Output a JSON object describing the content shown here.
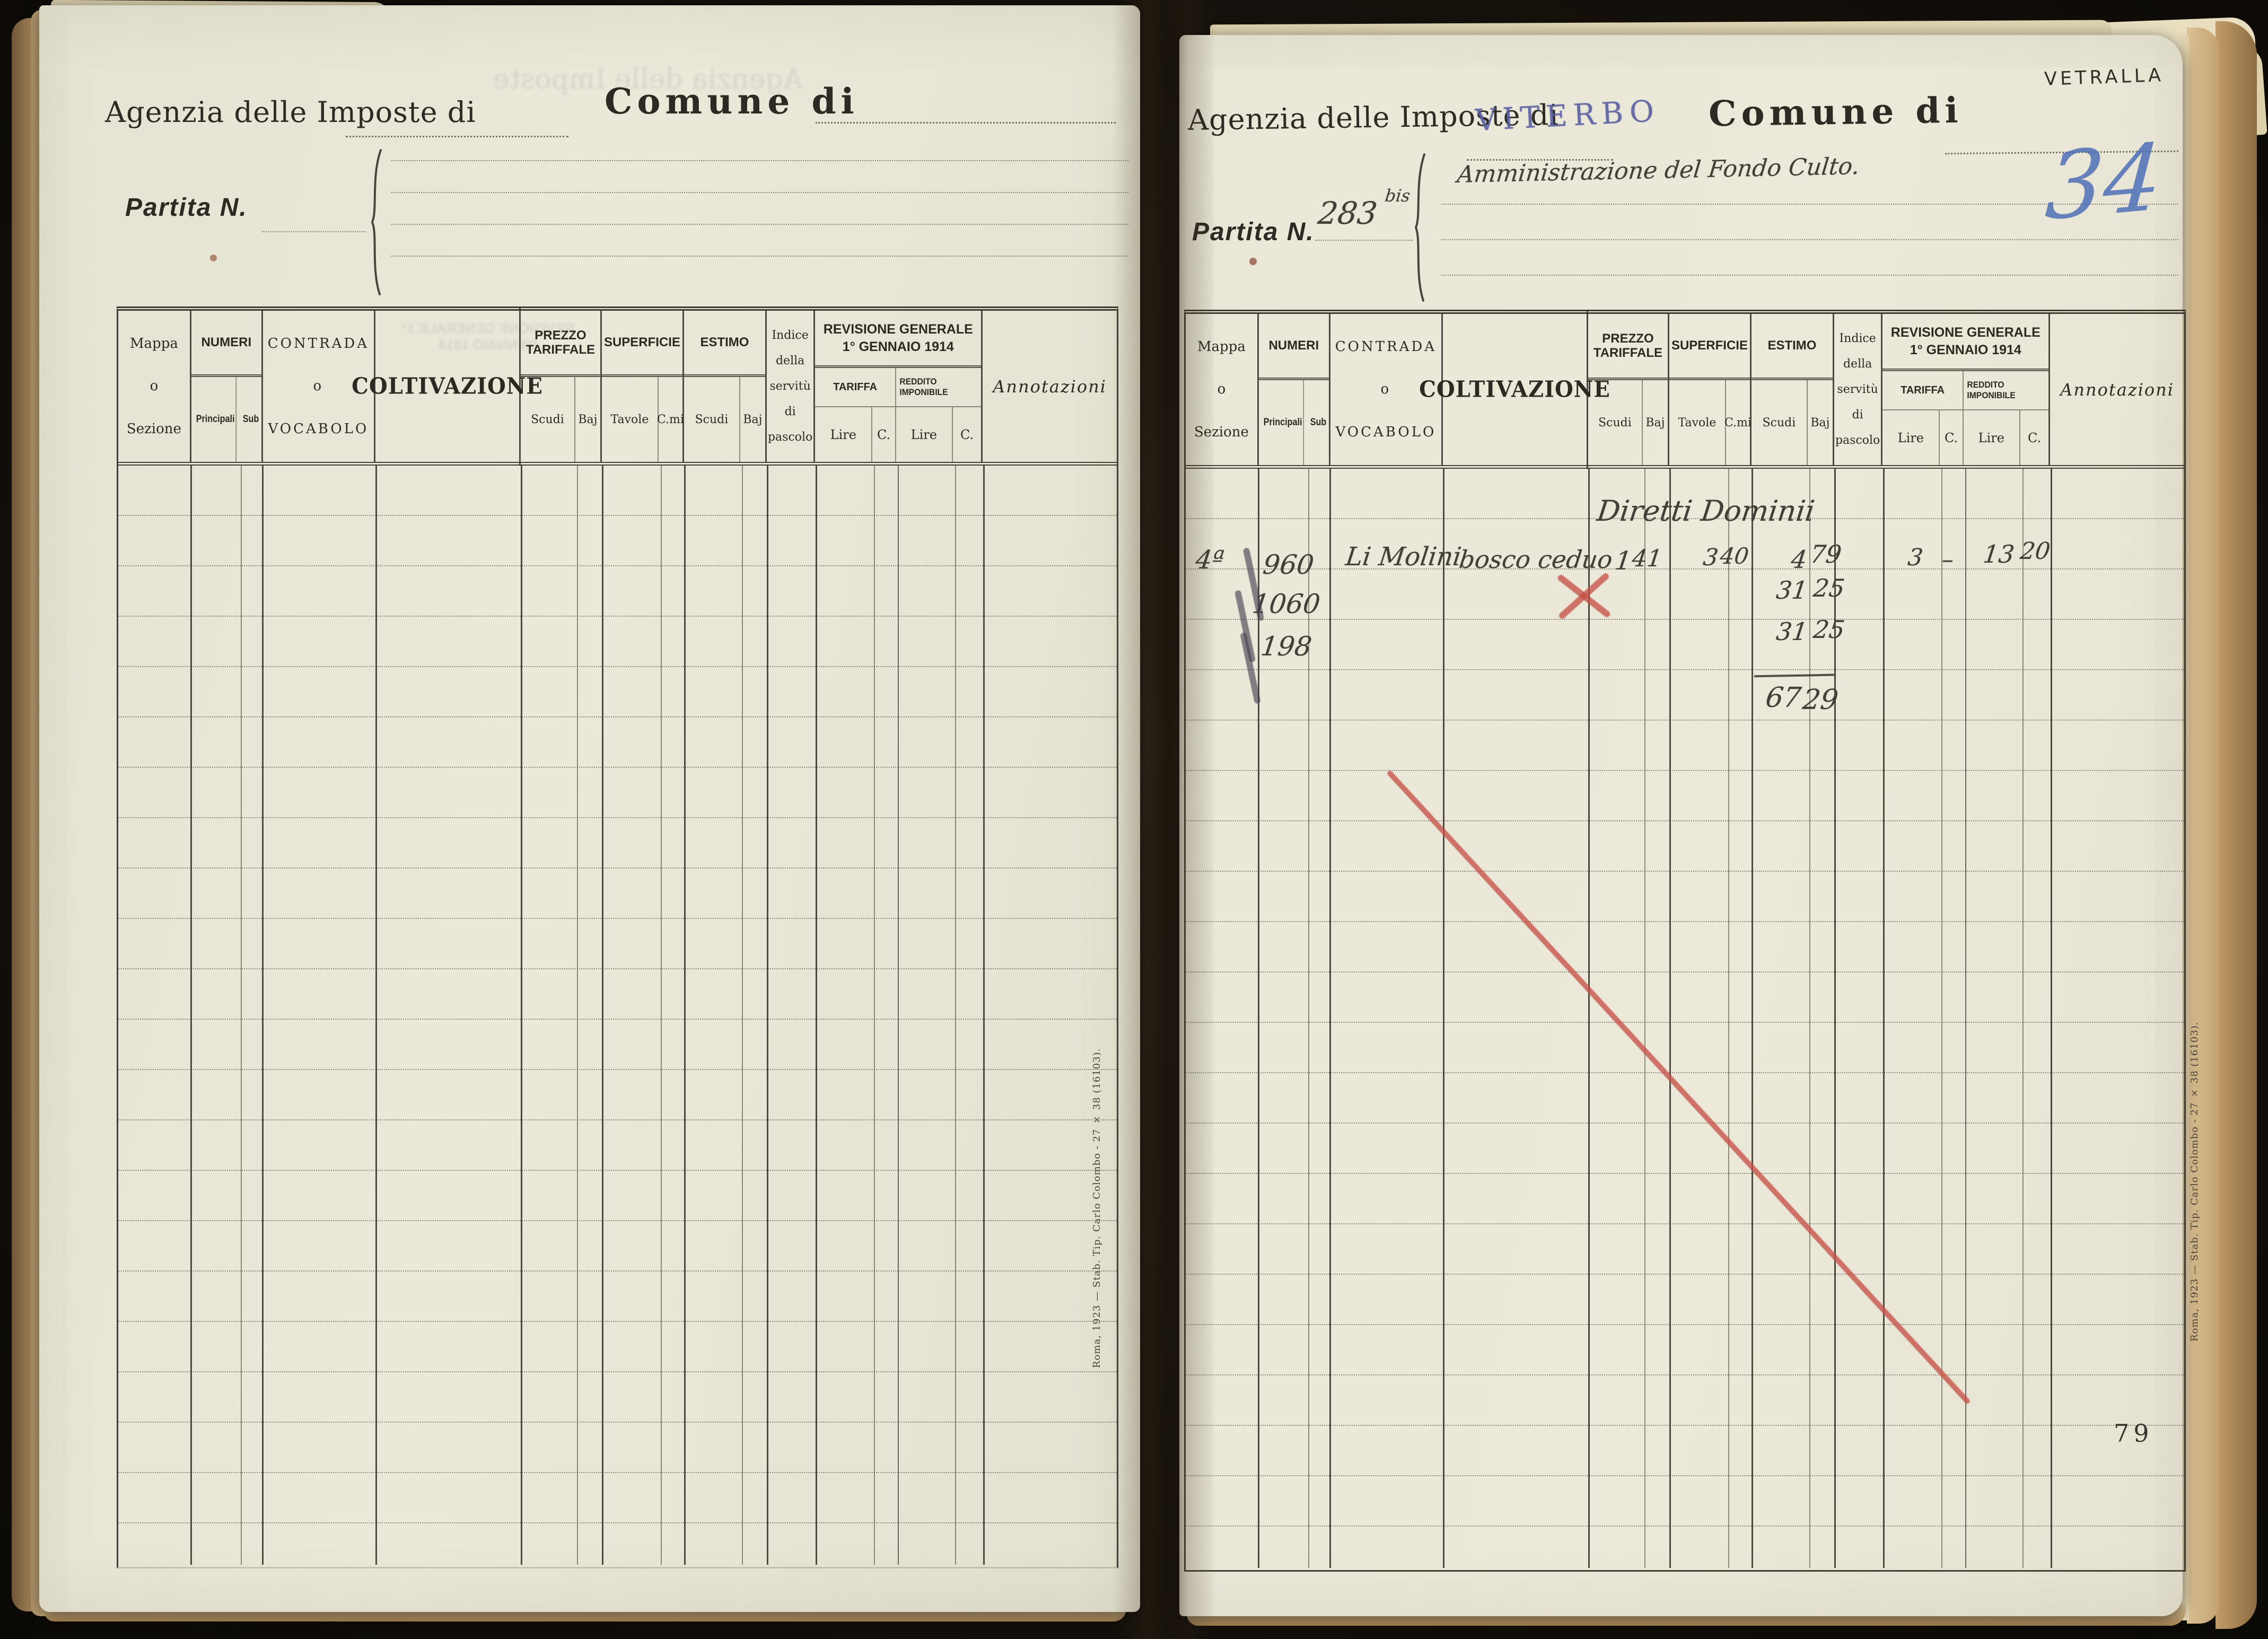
{
  "colors": {
    "paper": "#e9e7d8",
    "print_ink": "#2e2a23",
    "hand_ink": "#433f38",
    "stamp_blue": "#585da0",
    "pencil_blue": "#486ab6",
    "crayon_red": "#c55046"
  },
  "hdr": {
    "mappa_1": "Mappa",
    "mappa_2": "o",
    "mappa_3": "Sezione",
    "numeri": "NUMERI",
    "principali": "Principali",
    "sub": "Sub",
    "contrada_1": "CONTRADA",
    "contrada_2": "o",
    "contrada_3": "VOCABOLO",
    "coltivazione": "COLTIVAZIONE",
    "prezzo_1": "PREZZO",
    "prezzo_2": "TARIFFALE",
    "superficie": "SUPERFICIE",
    "estimo": "ESTIMO",
    "scudi": "Scudi",
    "baj": "Baj",
    "tavole": "Tavole",
    "cmi": "C.mi",
    "indice_1": "Indice",
    "indice_2": "della",
    "indice_3": "servitù",
    "indice_4": "di",
    "indice_5": "pascolo",
    "revisione_1": "REVISIONE GENERALE",
    "revisione_2": "1° GENNAIO 1914",
    "tariffa": "TARIFFA",
    "reddito": "REDDITO IMPONIBILE",
    "lire": "Lire",
    "c": "C.",
    "annotazioni": "Annotazioni"
  },
  "left_page": {
    "agenzia_label": "Agenzia delle Imposte di",
    "comune_label": "Comune di",
    "partita_label": "Partita N.",
    "imprint": "Roma, 1923 — Stab. Tip. Carlo Colombo - 27 × 38 (16103).",
    "ghost_text_1": "Agenzia delle Imposte",
    "ghost_text_2": "REVISIONE GENERALE 1° GENNAIO 1914"
  },
  "right_page": {
    "agenzia_label": "Agenzia delle Imposte di",
    "agenzia_office_stamp": "VITERBO",
    "comune_label": "Comune di",
    "comune_name": "VETRALLA",
    "partita_label": "Partita N.",
    "partita_number": "283",
    "partita_suffix": "bis",
    "intestazione": "Amministrazione del Fondo Culto.",
    "folio_blue": "34",
    "page_number": "79",
    "imprint": "Roma, 1923 — Stab. Tip. Carlo Colombo - 27 × 38 (16103)."
  },
  "entries": {
    "section_note": "Diretti Dominii",
    "rows": [
      {
        "mappa": "4ª",
        "numero": "960",
        "contrada": "Li Molini",
        "coltivazione": "bosco ceduo",
        "prezzo_scudi": "1",
        "prezzo_baj": "41",
        "superficie_tavole": "3",
        "superficie_cmi": "40",
        "estimo_scudi": "4",
        "estimo_baj": "79",
        "tariffa_lire": "3",
        "tariffa_c": "–",
        "reddito_lire": "13",
        "reddito_c": "20"
      },
      {
        "numero": "1060",
        "estimo_scudi": "31",
        "estimo_baj": "25"
      },
      {
        "numero": "198",
        "estimo_scudi": "31",
        "estimo_baj": "25"
      }
    ],
    "totale_estimo": {
      "scudi": "67",
      "baj": "29"
    }
  }
}
